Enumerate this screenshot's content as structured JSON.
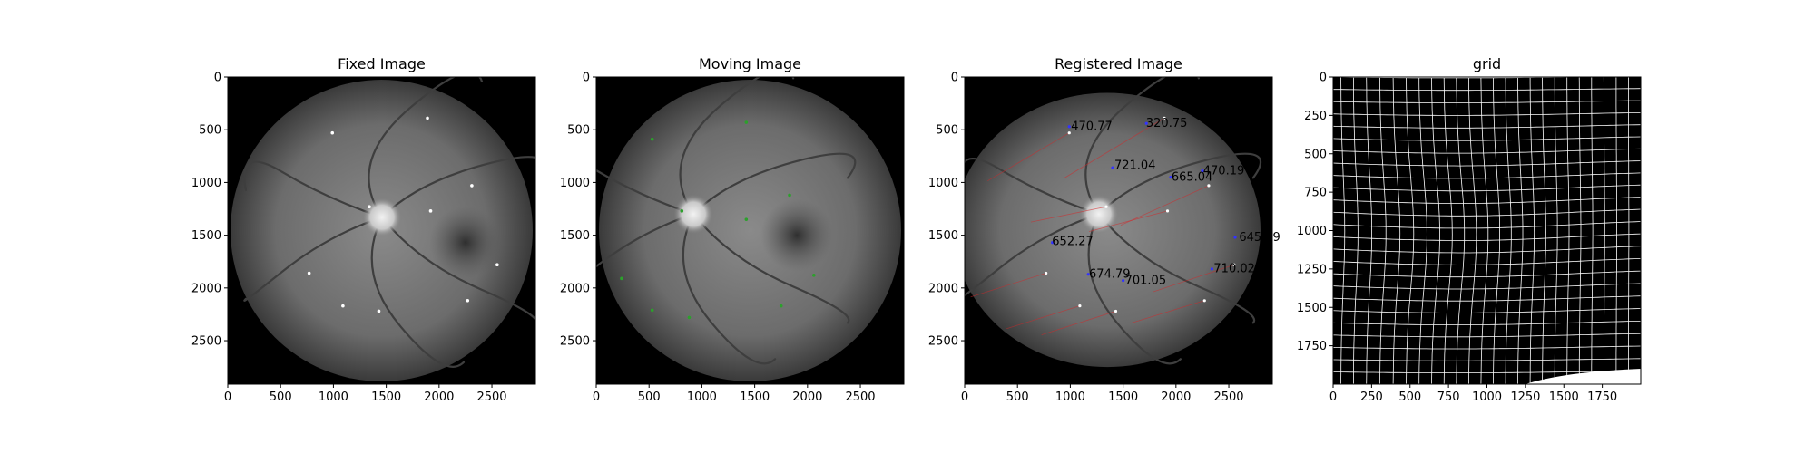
{
  "chart_data": [
    {
      "type": "image",
      "title": "Fixed Image",
      "xlim": [
        0,
        2912
      ],
      "ylim": [
        2912,
        0
      ],
      "xticks": [
        0,
        500,
        1000,
        1500,
        2000,
        2500
      ],
      "yticks": [
        0,
        500,
        1000,
        1500,
        2000,
        2500
      ],
      "image": {
        "disc_center": [
          1456,
          1456
        ],
        "disc_radius": 1430,
        "optic_disc": [
          1460,
          1330
        ],
        "fovea": [
          2250,
          1570
        ]
      },
      "keypoints": [
        {
          "x": 1890,
          "y": 390
        },
        {
          "x": 990,
          "y": 530
        },
        {
          "x": 2310,
          "y": 1030
        },
        {
          "x": 1340,
          "y": 1230
        },
        {
          "x": 1920,
          "y": 1270
        },
        {
          "x": 2550,
          "y": 1780
        },
        {
          "x": 770,
          "y": 1860
        },
        {
          "x": 2270,
          "y": 2120
        },
        {
          "x": 1090,
          "y": 2170
        },
        {
          "x": 1430,
          "y": 2220
        }
      ],
      "point_color": "#ffffff"
    },
    {
      "type": "image",
      "title": "Moving Image",
      "xlim": [
        0,
        2912
      ],
      "ylim": [
        2912,
        0
      ],
      "xticks": [
        0,
        500,
        1000,
        1500,
        2000,
        2500
      ],
      "yticks": [
        0,
        500,
        1000,
        1500,
        2000,
        2500
      ],
      "image": {
        "disc_center": [
          1456,
          1456
        ],
        "disc_radius": 1430,
        "optic_disc": [
          920,
          1300
        ],
        "fovea": [
          1900,
          1500
        ]
      },
      "keypoints": [
        {
          "x": 1420,
          "y": 430
        },
        {
          "x": 530,
          "y": 590
        },
        {
          "x": 1830,
          "y": 1120
        },
        {
          "x": 810,
          "y": 1270
        },
        {
          "x": 1420,
          "y": 1350
        },
        {
          "x": 2060,
          "y": 1880
        },
        {
          "x": 240,
          "y": 1910
        },
        {
          "x": 1750,
          "y": 2170
        },
        {
          "x": 530,
          "y": 2210
        },
        {
          "x": 880,
          "y": 2280
        }
      ],
      "point_color": "#2ca02c"
    },
    {
      "type": "image",
      "title": "Registered Image",
      "xlim": [
        0,
        2912
      ],
      "ylim": [
        2912,
        0
      ],
      "xticks": [
        0,
        500,
        1000,
        1500,
        2000,
        2500
      ],
      "yticks": [
        0,
        500,
        1000,
        1500,
        2000,
        2500
      ],
      "image": {
        "ellipse_center": [
          1350,
          1450
        ],
        "ellipse_radii": [
          1450,
          1300
        ],
        "optic_disc": [
          1270,
          1300
        ]
      },
      "annotations": [
        {
          "label": "470.77",
          "x": 990,
          "y": 460
        },
        {
          "label": "320.75",
          "x": 1700,
          "y": 430
        },
        {
          "label": "721.04",
          "x": 1400,
          "y": 830
        },
        {
          "label": "470.19",
          "x": 2240,
          "y": 880
        },
        {
          "label": "665.04",
          "x": 1940,
          "y": 940
        },
        {
          "label": "645.99",
          "x": 2580,
          "y": 1510
        },
        {
          "label": "652.27",
          "x": 810,
          "y": 1550
        },
        {
          "label": "710.02",
          "x": 2340,
          "y": 1810
        },
        {
          "label": "674.79",
          "x": 1160,
          "y": 1860
        },
        {
          "label": "701.05",
          "x": 1500,
          "y": 1920
        }
      ],
      "fixed_points": [
        {
          "x": 990,
          "y": 530
        },
        {
          "x": 1890,
          "y": 390
        },
        {
          "x": 1340,
          "y": 1230
        },
        {
          "x": 2310,
          "y": 1030
        },
        {
          "x": 1920,
          "y": 1270
        },
        {
          "x": 2550,
          "y": 1780
        },
        {
          "x": 770,
          "y": 1860
        },
        {
          "x": 2270,
          "y": 2120
        },
        {
          "x": 1090,
          "y": 2170
        },
        {
          "x": 1430,
          "y": 2220
        }
      ],
      "warped_points": [
        {
          "x": 990,
          "y": 470
        },
        {
          "x": 1720,
          "y": 440
        },
        {
          "x": 1400,
          "y": 860
        },
        {
          "x": 2250,
          "y": 890
        },
        {
          "x": 1950,
          "y": 950
        },
        {
          "x": 2560,
          "y": 1520
        },
        {
          "x": 830,
          "y": 1570
        },
        {
          "x": 2340,
          "y": 1820
        },
        {
          "x": 1170,
          "y": 1870
        },
        {
          "x": 1500,
          "y": 1930
        }
      ],
      "fixed_color": "#ffffff",
      "warped_color": "#3333ff",
      "line_color": "#d62728"
    },
    {
      "type": "grid",
      "title": "grid",
      "xlim": [
        0,
        2000
      ],
      "ylim": [
        2000,
        0
      ],
      "xticks": [
        0,
        250,
        500,
        750,
        1000,
        1250,
        1500,
        1750
      ],
      "yticks": [
        0,
        250,
        500,
        750,
        1000,
        1250,
        1500,
        1750
      ],
      "grid_spacing": 80
    }
  ]
}
